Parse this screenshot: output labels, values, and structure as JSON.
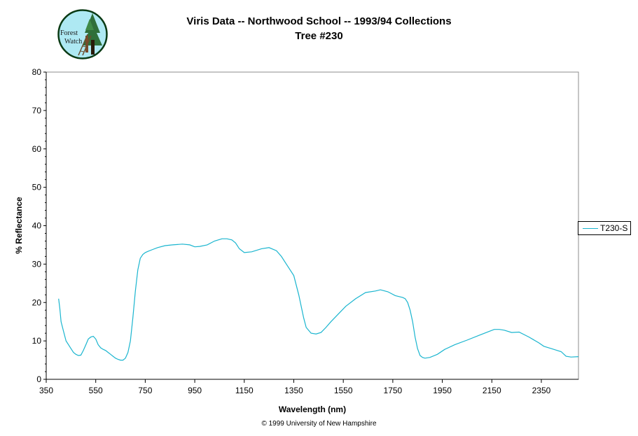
{
  "title": "Viris Data -- Northwood School -- 1993/94 Collections",
  "subtitle": "Tree #230",
  "logo": {
    "line1": "Forest",
    "line2": "Watch"
  },
  "copyright": "© 1999 University of New Hampshire",
  "chart_data": {
    "type": "line",
    "xlabel": "Wavelength (nm)",
    "ylabel": "% Reflectance",
    "xlim": [
      350,
      2500
    ],
    "ylim": [
      0,
      80
    ],
    "x_ticks": [
      350,
      550,
      750,
      950,
      1150,
      1350,
      1550,
      1750,
      1950,
      2150,
      2350
    ],
    "y_ticks": [
      0,
      10,
      20,
      30,
      40,
      50,
      60,
      70,
      80
    ],
    "grid": false,
    "legend_position": "right",
    "series": [
      {
        "name": "T230-S",
        "color": "#1ab5cf",
        "x": [
          400,
          405,
          410,
          420,
          430,
          440,
          450,
          460,
          470,
          480,
          490,
          500,
          510,
          520,
          530,
          540,
          550,
          560,
          570,
          580,
          590,
          600,
          610,
          620,
          630,
          640,
          650,
          660,
          670,
          680,
          690,
          700,
          710,
          720,
          730,
          740,
          750,
          760,
          780,
          800,
          830,
          860,
          900,
          930,
          950,
          970,
          1000,
          1030,
          1060,
          1080,
          1100,
          1115,
          1130,
          1150,
          1180,
          1220,
          1250,
          1280,
          1300,
          1320,
          1350,
          1370,
          1390,
          1400,
          1420,
          1440,
          1460,
          1480,
          1500,
          1530,
          1560,
          1600,
          1640,
          1680,
          1700,
          1730,
          1760,
          1790,
          1800,
          1810,
          1820,
          1830,
          1840,
          1850,
          1860,
          1870,
          1880,
          1900,
          1930,
          1960,
          2000,
          2050,
          2100,
          2140,
          2160,
          2180,
          2200,
          2230,
          2260,
          2300,
          2340,
          2360,
          2390,
          2410,
          2430,
          2450,
          2470,
          2500
        ],
        "y": [
          21.0,
          18.5,
          15.0,
          12.5,
          10.0,
          9.0,
          8.0,
          7.0,
          6.5,
          6.2,
          6.3,
          7.5,
          9.0,
          10.5,
          11.0,
          11.2,
          10.5,
          9.0,
          8.2,
          7.8,
          7.5,
          7.0,
          6.5,
          6.0,
          5.5,
          5.2,
          5.0,
          5.0,
          5.5,
          7.0,
          10.0,
          16.0,
          23.0,
          28.5,
          31.5,
          32.5,
          33.0,
          33.3,
          33.8,
          34.3,
          34.8,
          35.0,
          35.2,
          35.0,
          34.5,
          34.6,
          35.0,
          36.0,
          36.6,
          36.6,
          36.3,
          35.5,
          34.0,
          33.0,
          33.2,
          34.0,
          34.3,
          33.5,
          32.0,
          30.0,
          27.0,
          22.0,
          16.0,
          13.5,
          12.0,
          11.8,
          12.2,
          13.5,
          15.0,
          17.0,
          19.0,
          21.0,
          22.6,
          23.0,
          23.3,
          22.8,
          21.8,
          21.3,
          21.0,
          20.0,
          18.0,
          15.0,
          11.0,
          8.0,
          6.2,
          5.7,
          5.5,
          5.7,
          6.5,
          7.8,
          9.0,
          10.2,
          11.5,
          12.5,
          13.0,
          13.0,
          12.8,
          12.2,
          12.3,
          11.0,
          9.5,
          8.6,
          8.0,
          7.6,
          7.2,
          6.0,
          5.8,
          5.9
        ]
      }
    ]
  }
}
